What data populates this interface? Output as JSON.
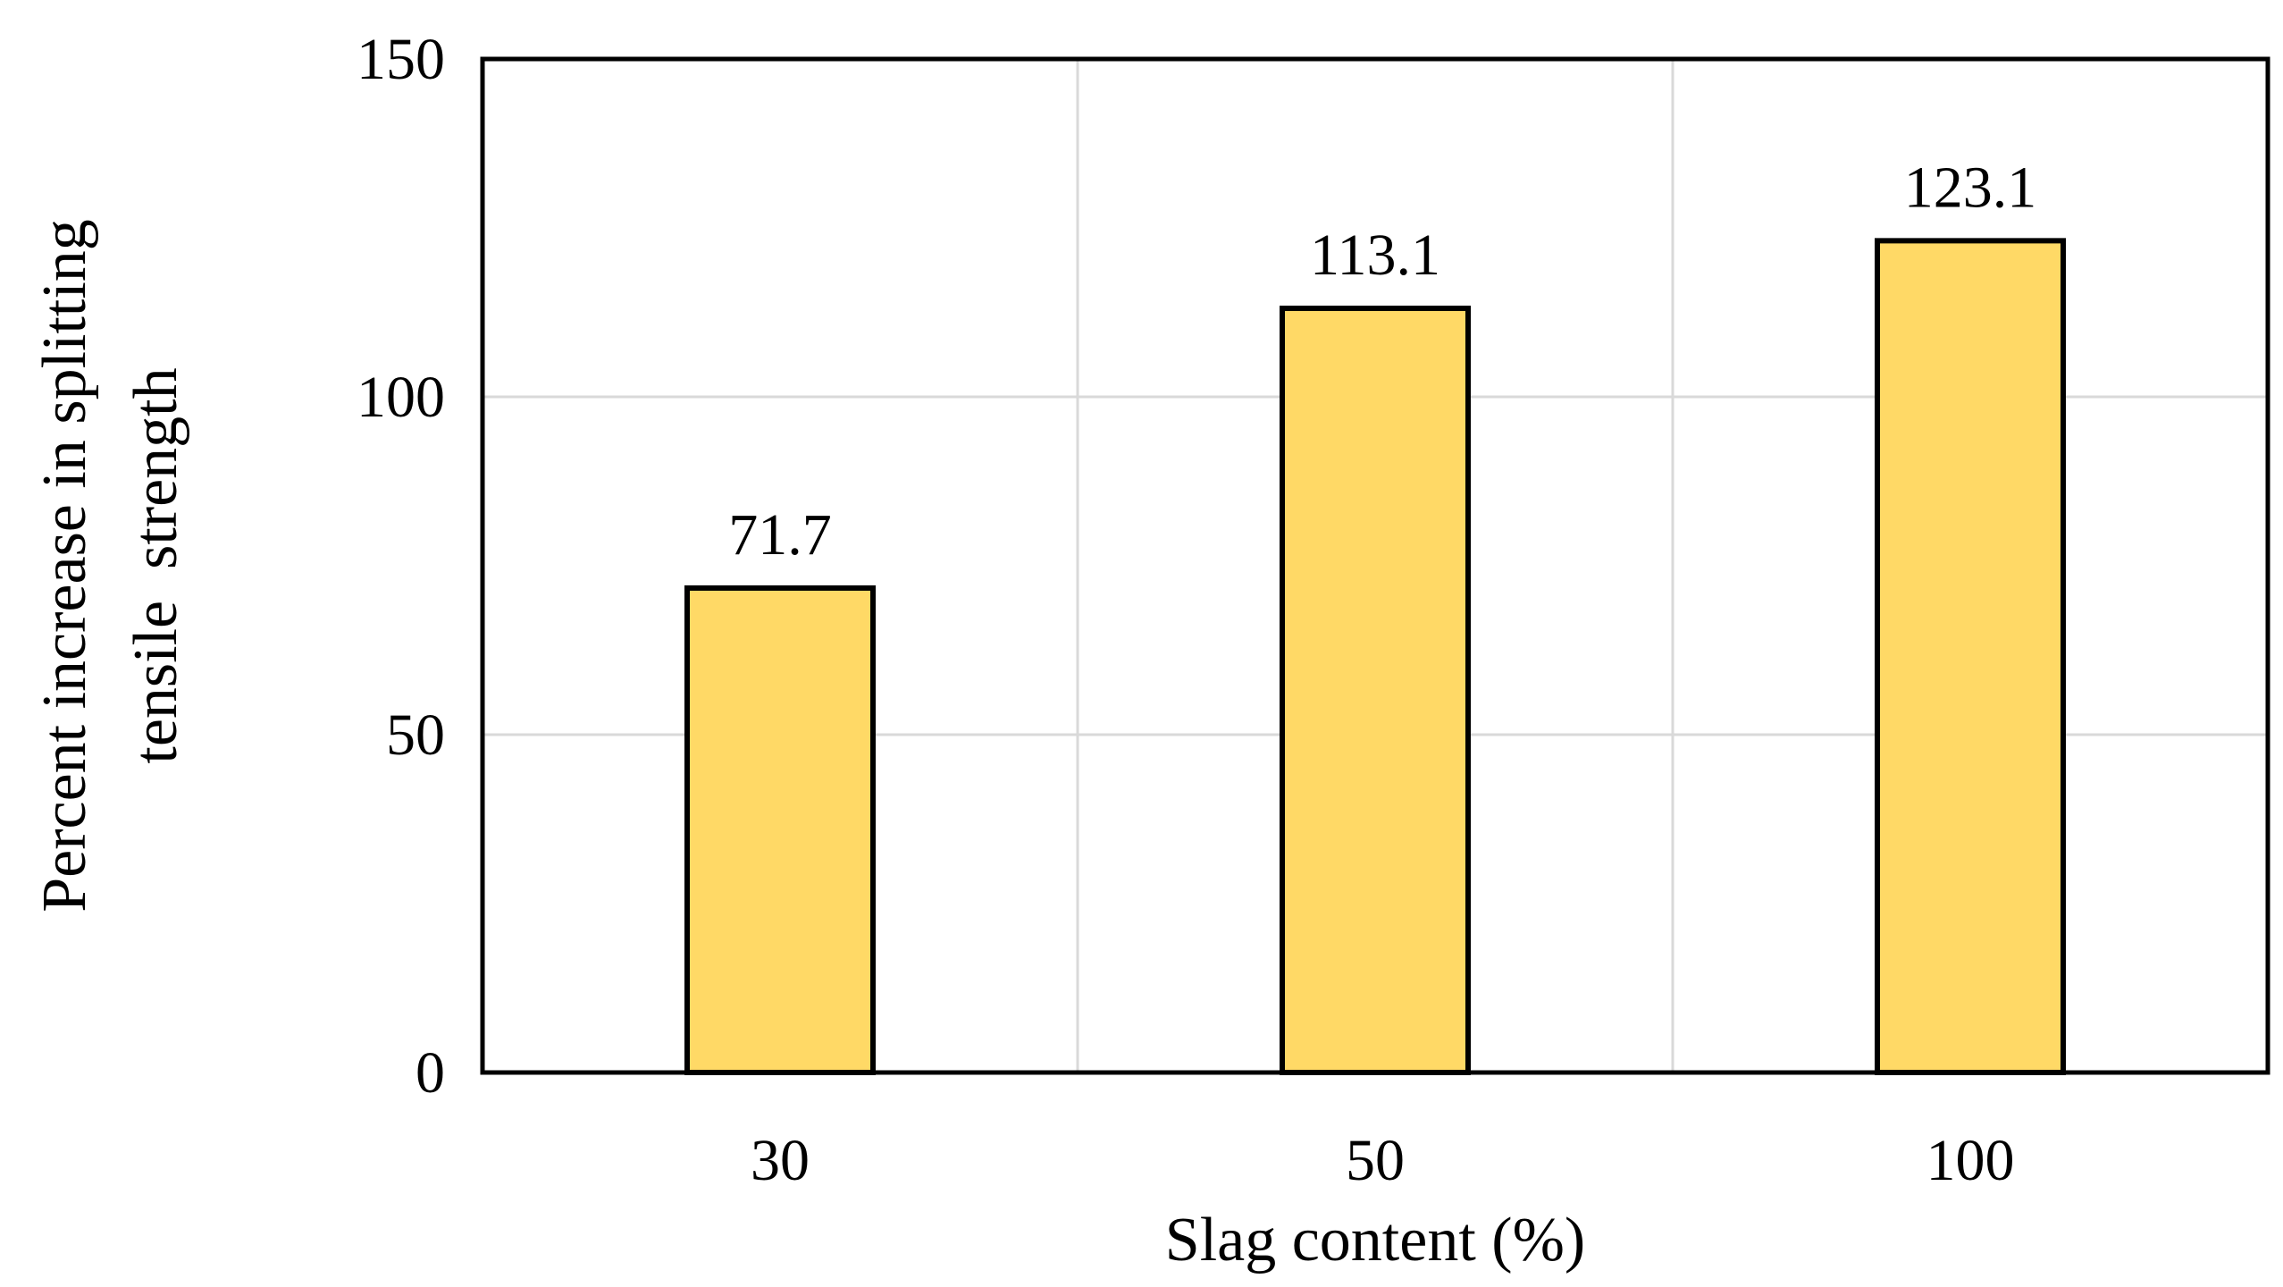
{
  "chart_data": {
    "type": "bar",
    "categories": [
      "30",
      "50",
      "100"
    ],
    "values": [
      71.7,
      113.1,
      123.1
    ],
    "value_labels": [
      "71.7",
      "113.1",
      "123.1"
    ],
    "title": "",
    "xlabel": "Slag content (%)",
    "ylabel_lines": [
      "Percent increase in splitting",
      "tensile  strength"
    ],
    "ylim": [
      0,
      150
    ],
    "yticks": [
      0,
      50,
      100,
      150
    ],
    "ytick_labels": [
      "0",
      "50",
      "100",
      "150"
    ],
    "grid": true,
    "legend": "none",
    "colors": {
      "bar_fill": "#FFD966",
      "bar_stroke": "#000000",
      "grid": "#D9D9D9",
      "axis": "#000000"
    }
  }
}
